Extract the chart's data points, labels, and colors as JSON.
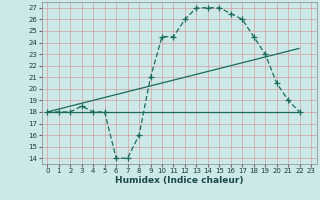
{
  "xlabel": "Humidex (Indice chaleur)",
  "bg_color": "#cde8e8",
  "grid_color": "#b0d4d4",
  "line_color": "#1a6b5a",
  "xlim": [
    -0.5,
    23.5
  ],
  "ylim": [
    13.5,
    27.5
  ],
  "xticks": [
    0,
    1,
    2,
    3,
    4,
    5,
    6,
    7,
    8,
    9,
    10,
    11,
    12,
    13,
    14,
    15,
    16,
    17,
    18,
    19,
    20,
    21,
    22,
    23
  ],
  "yticks": [
    14,
    15,
    16,
    17,
    18,
    19,
    20,
    21,
    22,
    23,
    24,
    25,
    26,
    27
  ],
  "curve1_x": [
    0,
    1,
    2,
    3,
    4,
    5,
    6,
    7,
    8,
    9,
    10,
    11,
    12,
    13,
    14,
    15,
    16,
    17,
    18,
    19,
    20,
    21,
    22
  ],
  "curve1_y": [
    18,
    18,
    18,
    18.5,
    18,
    18,
    14,
    14,
    16,
    21,
    24.5,
    24.5,
    26,
    27,
    27,
    27,
    26.5,
    26,
    24.5,
    23,
    20.5,
    19,
    18
  ],
  "curve2_x": [
    0,
    22
  ],
  "curve2_y": [
    18,
    23.5
  ],
  "curve3_x": [
    0,
    22
  ],
  "curve3_y": [
    18,
    18
  ],
  "marker_size": 3,
  "line_width": 0.9,
  "label_fontsize": 6.5,
  "tick_fontsize": 5.0
}
